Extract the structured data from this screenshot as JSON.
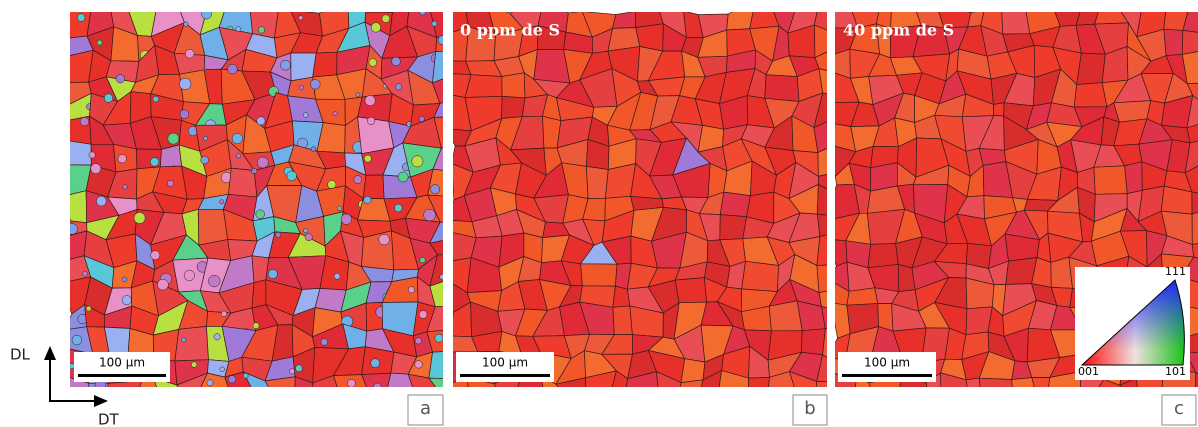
{
  "axes": {
    "vertical": "DL",
    "horizontal": "DT"
  },
  "panels": [
    {
      "label": "a",
      "scale_bar": "100 µm"
    },
    {
      "label": "b",
      "caption": "0 ppm de S",
      "scale_bar": "100 µm"
    },
    {
      "label": "c",
      "caption": "40 ppm de S",
      "scale_bar": "100 µm"
    }
  ],
  "legend": {
    "corner_001": "001",
    "corner_101": "101",
    "corner_111": "111"
  }
}
